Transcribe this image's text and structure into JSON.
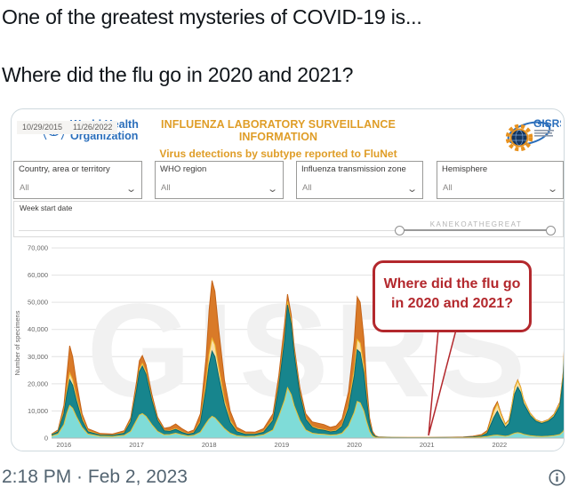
{
  "tweet": {
    "line1": "One of the greatest mysteries of COVID-19 is...",
    "line2": "Where did the flu go in 2020 and 2021?",
    "timestamp": "2:18 PM · Feb 2, 2023"
  },
  "dashboard": {
    "who": {
      "name_line1": "World Health",
      "name_line2": "Organization"
    },
    "title_line1": "INFLUENZA LABORATORY SURVEILLANCE INFORMATION",
    "title_line2": "Virus detections by subtype reported to FluNet",
    "gisrs_label": "GISRS",
    "filters": [
      {
        "label": "Country, area or territory",
        "value": "All"
      },
      {
        "label": "WHO region",
        "value": "All"
      },
      {
        "label": "Influenza transmission zone",
        "value": "All"
      },
      {
        "label": "Hemisphere",
        "value": "All"
      }
    ],
    "week": {
      "label": "Week start date",
      "start": "10/29/2015",
      "end": "11/26/2022",
      "slider_watermark": "KANEKOATHEGREAT"
    },
    "callout": {
      "line1": "Where did the flu go",
      "line2": "in 2020 and 2021?"
    },
    "watermark": "GISRS"
  },
  "colors": {
    "accent_orange": "#df9d27",
    "who_blue": "#2a6ebb",
    "callout_red": "#b3282d",
    "timestamp_gray": "#536471"
  },
  "chart_data": {
    "type": "area",
    "stacked": true,
    "title": "",
    "xlabel": "",
    "ylabel": "Number of specimens",
    "ylim": [
      0,
      70000
    ],
    "ytick_step": 10000,
    "xticks": [
      2016,
      2017,
      2018,
      2019,
      2020,
      2021,
      2022
    ],
    "x_range": [
      2015.83,
      2022.92
    ],
    "grid": true,
    "legend": false,
    "series": [
      {
        "name": "subtype-layer-1-light-teal",
        "color": "#7fdcd8",
        "edge": "#f1c232"
      },
      {
        "name": "subtype-layer-2-dark-teal",
        "color": "#17858d",
        "edge": "#0b666d"
      },
      {
        "name": "subtype-layer-3-cream-yellow",
        "color": "#f9dfa8",
        "edge": "#eebc2e"
      },
      {
        "name": "subtype-layer-4-orange",
        "color": "#d97a28",
        "edge": "#c46217"
      }
    ],
    "points": [
      [
        2015.83,
        800,
        400,
        100,
        200
      ],
      [
        2015.92,
        1500,
        800,
        200,
        500
      ],
      [
        2016.0,
        5000,
        4000,
        800,
        2200
      ],
      [
        2016.04,
        9000,
        7000,
        1500,
        5500
      ],
      [
        2016.08,
        12000,
        9500,
        2500,
        10000
      ],
      [
        2016.12,
        11000,
        8500,
        2000,
        8500
      ],
      [
        2016.17,
        8000,
        6000,
        1500,
        5500
      ],
      [
        2016.25,
        4000,
        2500,
        700,
        1800
      ],
      [
        2016.33,
        1500,
        900,
        300,
        800
      ],
      [
        2016.5,
        700,
        400,
        150,
        450
      ],
      [
        2016.67,
        600,
        400,
        100,
        400
      ],
      [
        2016.83,
        1000,
        800,
        200,
        700
      ],
      [
        2016.92,
        2500,
        3500,
        400,
        1100
      ],
      [
        2017.0,
        6500,
        11000,
        700,
        2300
      ],
      [
        2017.04,
        8500,
        16000,
        900,
        3100
      ],
      [
        2017.08,
        9000,
        17500,
        1000,
        2900
      ],
      [
        2017.13,
        8000,
        15500,
        900,
        2600
      ],
      [
        2017.21,
        5000,
        9000,
        600,
        1700
      ],
      [
        2017.29,
        2500,
        4000,
        300,
        1000
      ],
      [
        2017.38,
        1200,
        1500,
        200,
        700
      ],
      [
        2017.46,
        1300,
        1200,
        200,
        1300
      ],
      [
        2017.54,
        1800,
        1400,
        300,
        1700
      ],
      [
        2017.63,
        1200,
        900,
        200,
        1100
      ],
      [
        2017.71,
        800,
        600,
        150,
        650
      ],
      [
        2017.79,
        1000,
        900,
        200,
        900
      ],
      [
        2017.88,
        2200,
        3500,
        500,
        2800
      ],
      [
        2017.96,
        5500,
        13000,
        2200,
        9300
      ],
      [
        2018.0,
        7000,
        20000,
        3800,
        16200
      ],
      [
        2018.04,
        8000,
        24000,
        4700,
        21300
      ],
      [
        2018.08,
        7500,
        22500,
        4300,
        19700
      ],
      [
        2018.13,
        6000,
        17000,
        3200,
        14300
      ],
      [
        2018.21,
        3500,
        9000,
        1700,
        7300
      ],
      [
        2018.29,
        1800,
        4000,
        800,
        3400
      ],
      [
        2018.38,
        900,
        1500,
        350,
        1250
      ],
      [
        2018.5,
        600,
        800,
        200,
        700
      ],
      [
        2018.63,
        700,
        700,
        150,
        650
      ],
      [
        2018.75,
        1200,
        1000,
        250,
        1050
      ],
      [
        2018.88,
        3000,
        3500,
        500,
        2000
      ],
      [
        2018.96,
        8000,
        11000,
        800,
        3200
      ],
      [
        2019.04,
        14000,
        22000,
        1200,
        4800
      ],
      [
        2019.08,
        18500,
        30500,
        1300,
        2700
      ],
      [
        2019.13,
        16000,
        26000,
        1100,
        2400
      ],
      [
        2019.17,
        12000,
        19000,
        900,
        2100
      ],
      [
        2019.25,
        6500,
        9500,
        600,
        1900
      ],
      [
        2019.33,
        3000,
        4000,
        400,
        1600
      ],
      [
        2019.42,
        1800,
        2200,
        300,
        1700
      ],
      [
        2019.5,
        1500,
        1700,
        300,
        2000
      ],
      [
        2019.58,
        1400,
        1500,
        250,
        1850
      ],
      [
        2019.67,
        1100,
        1200,
        200,
        1500
      ],
      [
        2019.75,
        1200,
        1400,
        250,
        1650
      ],
      [
        2019.83,
        1800,
        2500,
        400,
        2300
      ],
      [
        2019.92,
        4500,
        6500,
        900,
        5100
      ],
      [
        2020.0,
        9500,
        13500,
        2500,
        10500
      ],
      [
        2020.04,
        13500,
        19000,
        3800,
        15700
      ],
      [
        2020.08,
        13000,
        18500,
        3500,
        15000
      ],
      [
        2020.13,
        10000,
        14000,
        2500,
        10500
      ],
      [
        2020.17,
        6000,
        8000,
        1200,
        4800
      ],
      [
        2020.21,
        2500,
        3000,
        400,
        1600
      ],
      [
        2020.25,
        800,
        900,
        150,
        650
      ],
      [
        2020.29,
        300,
        300,
        50,
        250
      ],
      [
        2020.33,
        150,
        150,
        30,
        120
      ],
      [
        2020.5,
        100,
        100,
        20,
        80
      ],
      [
        2020.75,
        80,
        80,
        20,
        70
      ],
      [
        2021.0,
        80,
        80,
        20,
        70
      ],
      [
        2021.25,
        90,
        90,
        20,
        80
      ],
      [
        2021.5,
        120,
        120,
        30,
        130
      ],
      [
        2021.63,
        200,
        200,
        50,
        250
      ],
      [
        2021.75,
        350,
        400,
        100,
        450
      ],
      [
        2021.83,
        600,
        1200,
        300,
        700
      ],
      [
        2021.92,
        1000,
        6500,
        2200,
        1300
      ],
      [
        2021.97,
        1100,
        8800,
        2700,
        800
      ],
      [
        2022.02,
        900,
        6000,
        1800,
        500
      ],
      [
        2022.08,
        700,
        3300,
        900,
        300
      ],
      [
        2022.13,
        900,
        4500,
        1100,
        300
      ],
      [
        2022.17,
        1400,
        9000,
        1600,
        300
      ],
      [
        2022.21,
        1800,
        14500,
        2200,
        300
      ],
      [
        2022.25,
        2000,
        16800,
        2300,
        300
      ],
      [
        2022.29,
        1800,
        15000,
        1800,
        250
      ],
      [
        2022.33,
        1400,
        11500,
        1300,
        200
      ],
      [
        2022.42,
        900,
        7500,
        700,
        150
      ],
      [
        2022.5,
        700,
        5500,
        450,
        150
      ],
      [
        2022.58,
        600,
        4800,
        350,
        150
      ],
      [
        2022.67,
        700,
        5500,
        400,
        200
      ],
      [
        2022.75,
        900,
        7000,
        600,
        300
      ],
      [
        2022.83,
        1300,
        10500,
        900,
        500
      ],
      [
        2022.88,
        2500,
        20000,
        1500,
        800
      ],
      [
        2022.92,
        5500,
        47000,
        2500,
        1000
      ]
    ]
  }
}
